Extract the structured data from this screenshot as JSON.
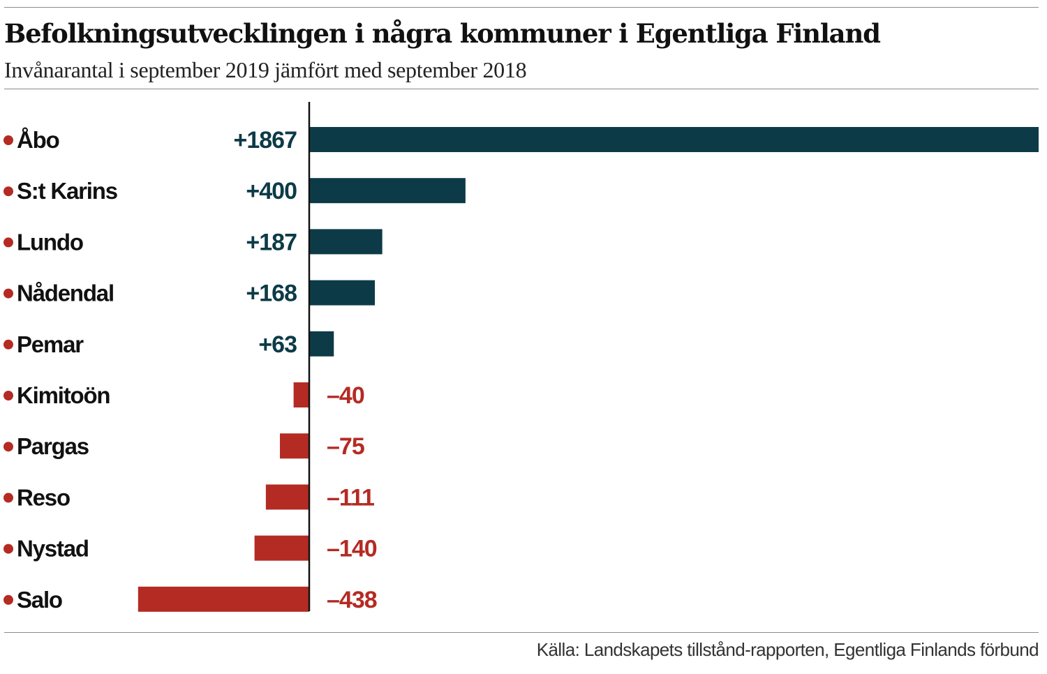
{
  "header": {
    "title": "Befolkningsutvecklingen i några kommuner i Egentliga Finland",
    "subtitle": "Invånarantal i september 2019 jämfört med september 2018"
  },
  "footer": {
    "source": "Källa: Landskapets tillstånd-rapporten, Egentliga Finlands förbund"
  },
  "colors": {
    "positive": "#0c3b47",
    "negative": "#b42b23",
    "bullet": "#b42b23",
    "axis": "#111111"
  },
  "chart_data": {
    "type": "bar",
    "orientation": "horizontal",
    "title": "Befolkningsutvecklingen i några kommuner i Egentliga Finland",
    "subtitle": "Invånarantal i september 2019 jämfört med september 2018",
    "categories": [
      "Åbo",
      "S:t Karins",
      "Lundo",
      "Nådendal",
      "Pemar",
      "Kimitoön",
      "Pargas",
      "Reso",
      "Nystad",
      "Salo"
    ],
    "values": [
      1867,
      400,
      187,
      168,
      63,
      -40,
      -75,
      -111,
      -140,
      -438
    ],
    "value_labels": [
      "+1867",
      "+400",
      "+187",
      "+168",
      "+63",
      "–40",
      "–75",
      "–111",
      "–140",
      "–438"
    ],
    "xlim": [
      -790,
      1867
    ],
    "grid": false,
    "legend": "none"
  }
}
